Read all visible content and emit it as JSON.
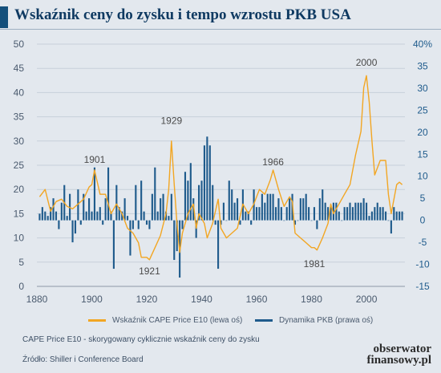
{
  "title": "Wskaźnik ceny do zysku i tempo wzrostu PKB USA",
  "legend": {
    "cape": "Wskaźnik CAPE Price E10 (lewa oś)",
    "gdp": "Dynamika PKB (prawa oś)"
  },
  "footnote": "CAPE Price E10 - skorygowany cyklicznie wskaźnik ceny do zysku",
  "source": "Źródło: Shiller i Conference Board",
  "logo": {
    "line1": "obserwator",
    "line2": "finansowy.pl"
  },
  "colors": {
    "background": "#e3e8ee",
    "cape_line": "#f2a623",
    "gdp_bars": "#1f5b8c",
    "title": "#0f3a62",
    "accent_bar": "#14507c"
  },
  "chart_data": {
    "type": "bar+line",
    "x_axis": {
      "min": 1880,
      "max": 2014,
      "ticks": [
        1880,
        1900,
        1920,
        1940,
        1960,
        1980,
        2000
      ]
    },
    "y_left": {
      "min": 0,
      "max": 50,
      "ticks": [
        0,
        5,
        10,
        15,
        20,
        25,
        30,
        35,
        40,
        45,
        50
      ],
      "unit": ""
    },
    "y_right": {
      "min": -15,
      "max": 40,
      "ticks": [
        -15,
        -10,
        -5,
        0,
        5,
        10,
        15,
        20,
        25,
        30,
        35,
        "40%"
      ],
      "unit": "%"
    },
    "grid": true,
    "legend_position": "bottom",
    "series": [
      {
        "name": "Wskaźnik CAPE Price E10 (lewa oś)",
        "type": "line",
        "axis": "left",
        "x": [
          1881,
          1883,
          1885,
          1887,
          1889,
          1891,
          1893,
          1895,
          1897,
          1899,
          1900,
          1901,
          1903,
          1905,
          1907,
          1909,
          1911,
          1913,
          1915,
          1917,
          1918,
          1920,
          1921,
          1923,
          1925,
          1927,
          1928,
          1929,
          1930,
          1931,
          1932,
          1933,
          1935,
          1937,
          1938,
          1939,
          1941,
          1942,
          1944,
          1946,
          1947,
          1949,
          1951,
          1953,
          1955,
          1957,
          1959,
          1961,
          1963,
          1965,
          1966,
          1968,
          1970,
          1972,
          1973,
          1974,
          1976,
          1978,
          1980,
          1981,
          1982,
          1984,
          1986,
          1987,
          1988,
          1990,
          1992,
          1994,
          1996,
          1998,
          1999,
          2000,
          2001,
          2002,
          2003,
          2005,
          2007,
          2008,
          2009,
          2011,
          2012,
          2013
        ],
        "y": [
          18.5,
          20,
          15.5,
          17.5,
          18,
          16.5,
          16,
          17,
          18,
          20.5,
          21,
          24,
          19,
          19,
          15,
          17,
          15,
          12,
          11,
          9,
          6,
          6,
          5.5,
          8,
          10.5,
          15,
          20,
          30,
          21,
          13,
          7,
          11,
          15,
          17,
          12,
          15,
          13,
          10,
          13,
          18,
          12,
          10,
          11,
          12,
          17,
          15,
          17,
          20,
          19,
          22,
          24,
          20,
          16.5,
          18.5,
          17.5,
          11,
          10,
          9,
          8,
          8,
          7.5,
          10,
          13,
          17,
          15,
          17,
          19,
          21,
          27,
          32,
          41,
          43.5,
          38,
          30,
          23,
          26,
          26,
          19,
          15,
          21,
          21.5,
          21
        ]
      },
      {
        "name": "Dynamika PKB (prawa oś)",
        "type": "bar",
        "axis": "right",
        "x": [
          1881,
          1882,
          1883,
          1884,
          1885,
          1886,
          1887,
          1888,
          1889,
          1890,
          1891,
          1892,
          1893,
          1894,
          1895,
          1896,
          1897,
          1898,
          1899,
          1900,
          1901,
          1902,
          1903,
          1904,
          1905,
          1906,
          1907,
          1908,
          1909,
          1910,
          1911,
          1912,
          1913,
          1914,
          1915,
          1916,
          1917,
          1918,
          1919,
          1920,
          1921,
          1922,
          1923,
          1924,
          1925,
          1926,
          1927,
          1928,
          1929,
          1930,
          1931,
          1932,
          1933,
          1934,
          1935,
          1936,
          1937,
          1938,
          1939,
          1940,
          1941,
          1942,
          1943,
          1944,
          1945,
          1946,
          1947,
          1948,
          1949,
          1950,
          1951,
          1952,
          1953,
          1954,
          1955,
          1956,
          1957,
          1958,
          1959,
          1960,
          1961,
          1962,
          1963,
          1964,
          1965,
          1966,
          1967,
          1968,
          1969,
          1970,
          1971,
          1972,
          1973,
          1974,
          1975,
          1976,
          1977,
          1978,
          1979,
          1980,
          1981,
          1982,
          1983,
          1984,
          1985,
          1986,
          1987,
          1988,
          1989,
          1990,
          1991,
          1992,
          1993,
          1994,
          1995,
          1996,
          1997,
          1998,
          1999,
          2000,
          2001,
          2002,
          2003,
          2004,
          2005,
          2006,
          2007,
          2008,
          2009,
          2010,
          2011,
          2012,
          2013
        ],
        "y": [
          1.5,
          3,
          2,
          1,
          3,
          5,
          2,
          -2,
          4,
          8,
          1,
          6,
          -5,
          -3,
          7,
          -1,
          6,
          2,
          5,
          2,
          12,
          2,
          3,
          -1,
          5,
          12,
          2,
          -11,
          8,
          3,
          2,
          5,
          1,
          -8,
          -2,
          8,
          -2,
          9,
          2,
          -1,
          -2,
          6,
          12,
          2,
          5,
          6,
          2,
          1,
          6,
          -9,
          -7,
          -13,
          -2,
          11,
          9,
          13,
          5,
          -4,
          8,
          9,
          17,
          19,
          17,
          8,
          -1,
          -11,
          -1,
          4,
          0,
          9,
          7,
          4,
          5,
          -1,
          7,
          2,
          2,
          -1,
          7,
          3,
          3,
          6,
          4,
          6,
          6,
          6,
          3,
          5,
          3,
          0,
          3,
          5,
          6,
          -1,
          0,
          5,
          5,
          6,
          3,
          0,
          3,
          -2,
          5,
          7,
          4,
          3,
          3,
          4,
          4,
          2,
          0,
          3,
          3,
          4,
          3,
          4,
          4,
          4,
          5,
          4,
          1,
          2,
          3,
          4,
          3,
          3,
          2,
          0,
          -3,
          3,
          2,
          2,
          2
        ]
      }
    ],
    "annotations": [
      {
        "text": "1901",
        "x": 1901,
        "y": 25.5
      },
      {
        "text": "1929",
        "x": 1929,
        "y": 33.5
      },
      {
        "text": "1921",
        "x": 1921,
        "y": 2.5
      },
      {
        "text": "1966",
        "x": 1966,
        "y": 25
      },
      {
        "text": "1981",
        "x": 1981,
        "y": 4
      },
      {
        "text": "2000",
        "x": 2000,
        "y": 45.5
      }
    ]
  }
}
